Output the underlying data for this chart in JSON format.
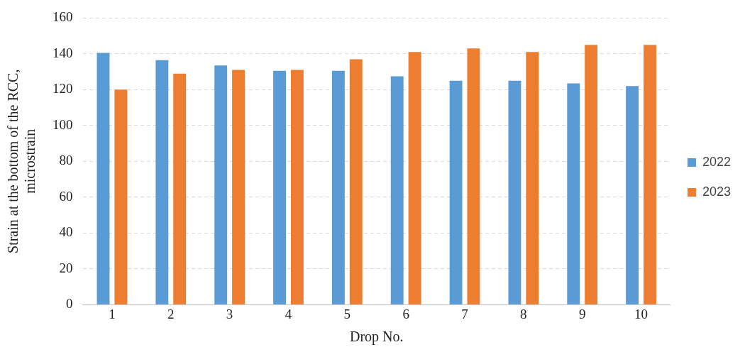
{
  "chart_data": {
    "type": "bar",
    "xlabel": "Drop No.",
    "ylabel": "Strain at the bottom of the RCC, microstrain",
    "categories": [
      "1",
      "2",
      "3",
      "4",
      "5",
      "6",
      "7",
      "8",
      "9",
      "10"
    ],
    "series": [
      {
        "name": "2022",
        "color": "#5b9bd5",
        "values": [
          140.5,
          136.5,
          133.5,
          130.5,
          130.5,
          127.5,
          125,
          125,
          123.5,
          122
        ]
      },
      {
        "name": "2023",
        "color": "#ed7d31",
        "values": [
          120,
          129,
          131,
          131,
          137,
          141,
          143,
          141,
          145,
          145
        ]
      }
    ],
    "ylim": [
      0,
      160
    ],
    "yticks": [
      0,
      20,
      40,
      60,
      80,
      100,
      120,
      140,
      160
    ],
    "grid": "y",
    "legend": "right"
  }
}
